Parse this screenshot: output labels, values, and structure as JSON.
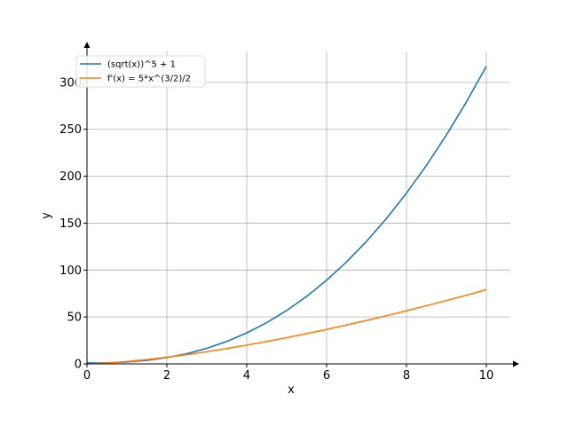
{
  "chart_data": {
    "type": "line",
    "title": "",
    "xlabel": "x",
    "ylabel": "y",
    "xlim": [
      0,
      10.6
    ],
    "ylim": [
      0,
      333
    ],
    "xticks": [
      0,
      2,
      4,
      6,
      8,
      10
    ],
    "yticks": [
      0,
      50,
      100,
      150,
      200,
      250,
      300
    ],
    "grid": true,
    "legend_position": "top-left",
    "x": [
      0,
      0.5,
      1,
      1.5,
      2,
      2.5,
      3,
      3.5,
      4,
      4.5,
      5,
      5.5,
      6,
      6.5,
      7,
      7.5,
      8,
      8.5,
      9,
      9.5,
      10
    ],
    "series": [
      {
        "name": "(sqrt(x))^5 + 1",
        "color": "#1f77b4",
        "values": [
          1.0,
          1.18,
          2.0,
          3.76,
          6.66,
          10.88,
          16.59,
          23.92,
          33.0,
          43.96,
          56.9,
          71.94,
          89.18,
          108.72,
          130.64,
          155.04,
          182.02,
          211.64,
          244.0,
          279.16,
          317.23
        ]
      },
      {
        "name": "f'(x) = 5*x^(3/2)/2",
        "color": "#ff7f0e",
        "values": [
          0.0,
          0.88,
          2.5,
          4.59,
          7.07,
          9.88,
          12.99,
          16.37,
          20.0,
          23.86,
          27.95,
          32.25,
          36.74,
          41.43,
          46.3,
          51.35,
          56.57,
          61.96,
          67.5,
          73.21,
          79.06
        ]
      }
    ]
  }
}
